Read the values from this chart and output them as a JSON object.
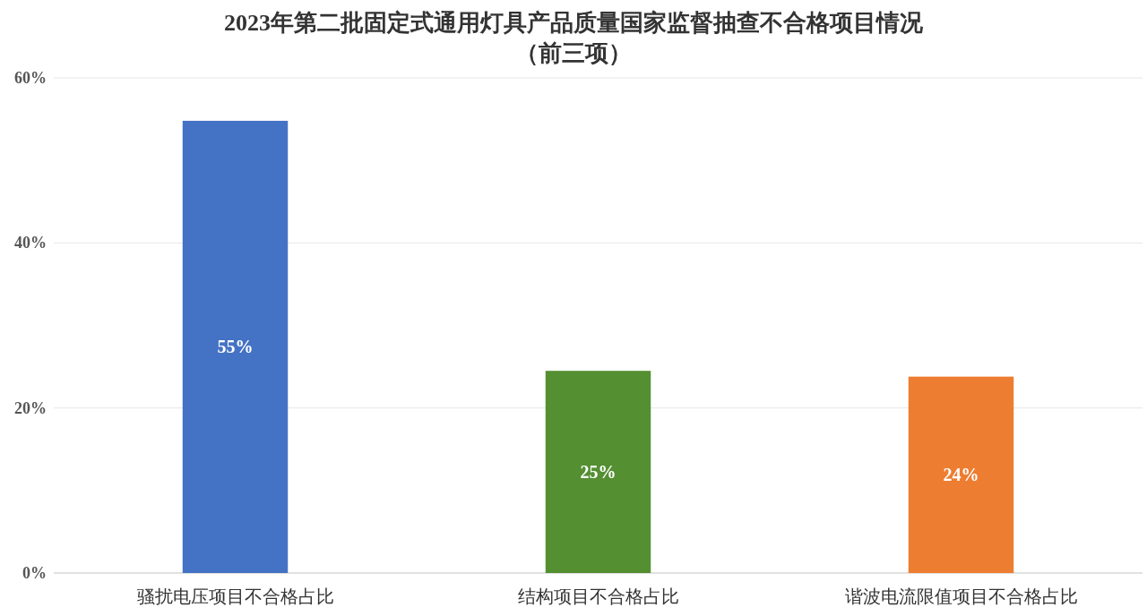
{
  "chart_data": {
    "type": "bar",
    "title": "2023年第二批固定式通用灯具产品质量国家监督抽查不合格项目情况",
    "subtitle": "（前三项）",
    "categories": [
      "骚扰电压项目不合格占比",
      "结构项目不合格占比",
      "谐波电流限值项目不合格占比"
    ],
    "values": [
      54.8,
      24.5,
      23.8
    ],
    "value_labels": [
      "55%",
      "25%",
      "24%"
    ],
    "colors": [
      "#4472c4",
      "#548f32",
      "#ed7d31"
    ],
    "ylim": [
      0,
      60
    ],
    "yticks": [
      {
        "value": 0,
        "label": "0%"
      },
      {
        "value": 20,
        "label": "20%"
      },
      {
        "value": 40,
        "label": "40%"
      },
      {
        "value": 60,
        "label": "60%"
      }
    ],
    "grid": "y"
  }
}
